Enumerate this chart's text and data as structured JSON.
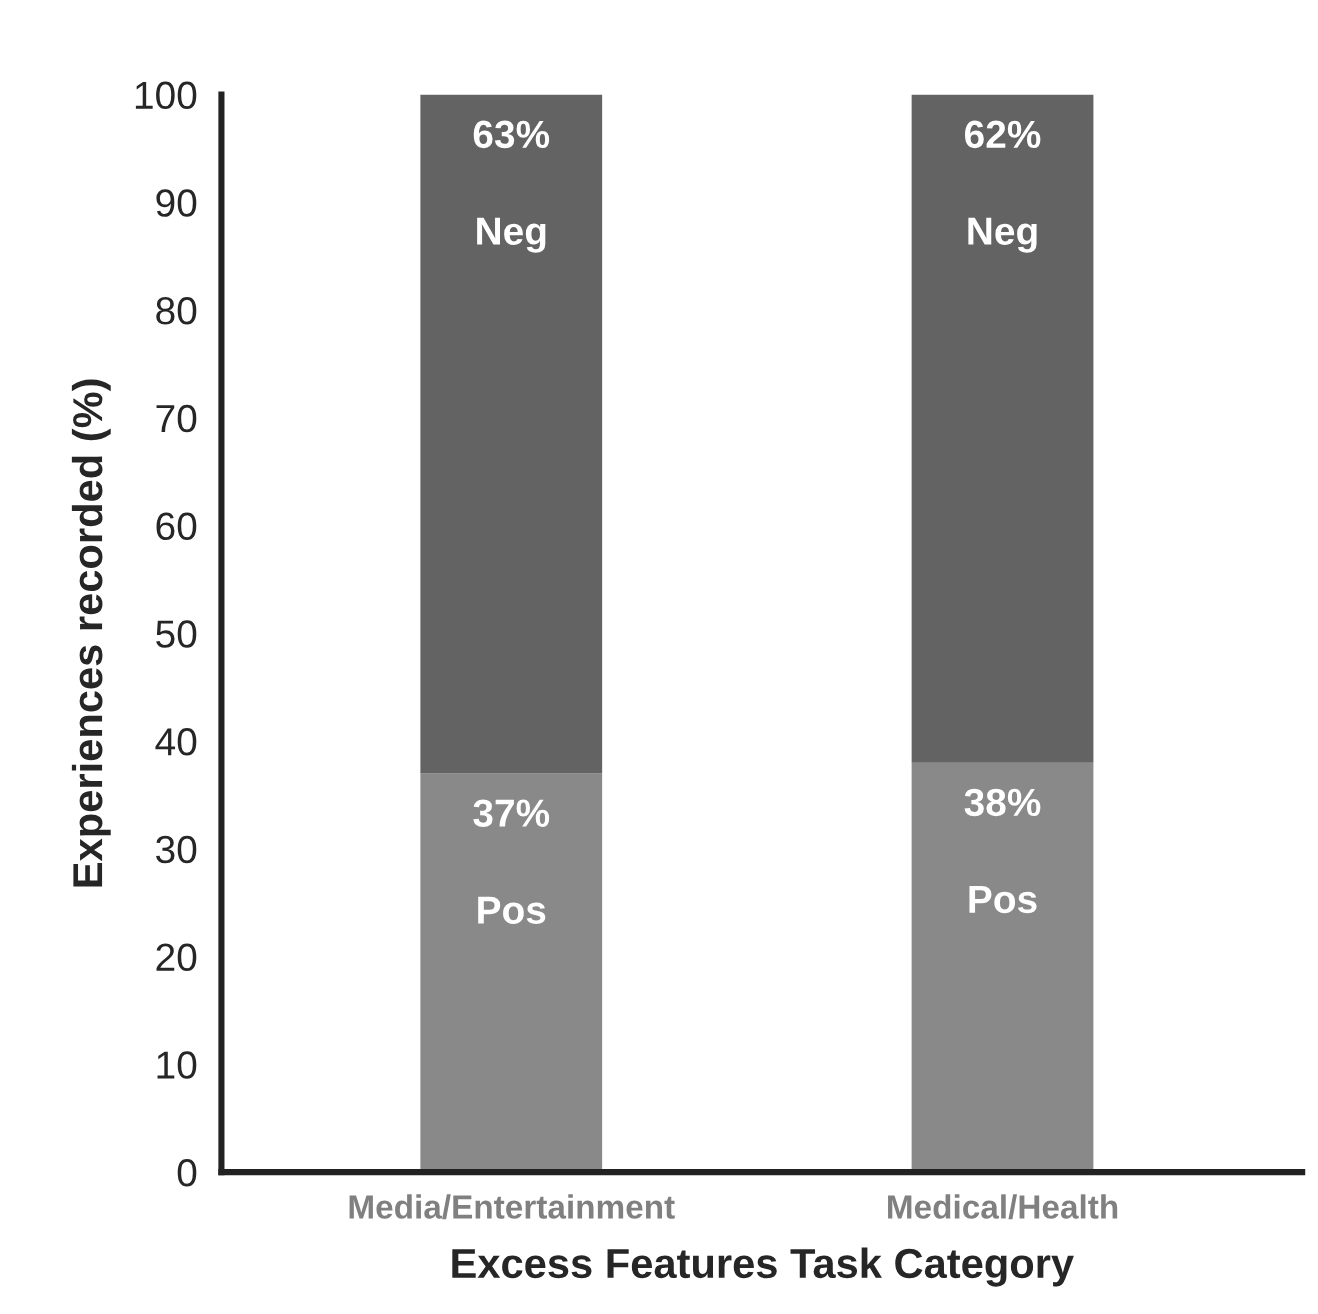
{
  "chart_data": {
    "type": "bar",
    "stacked": true,
    "xlabel": "Excess Features Task Category",
    "ylabel": "Experiences recorded (%)",
    "categories": [
      "Media/Entertainment",
      "Medical/Health"
    ],
    "series": [
      {
        "name": "Pos",
        "color": "#898989",
        "values": [
          37,
          38
        ],
        "value_labels": [
          "37%",
          "38%"
        ]
      },
      {
        "name": "Neg",
        "color": "#636363",
        "values": [
          63,
          62
        ],
        "value_labels": [
          "63%",
          "62%"
        ]
      }
    ],
    "ylim": [
      0,
      100
    ],
    "yticks": [
      0,
      10,
      20,
      30,
      40,
      50,
      60,
      70,
      80,
      90,
      100
    ],
    "grid": false,
    "legend": false
  }
}
